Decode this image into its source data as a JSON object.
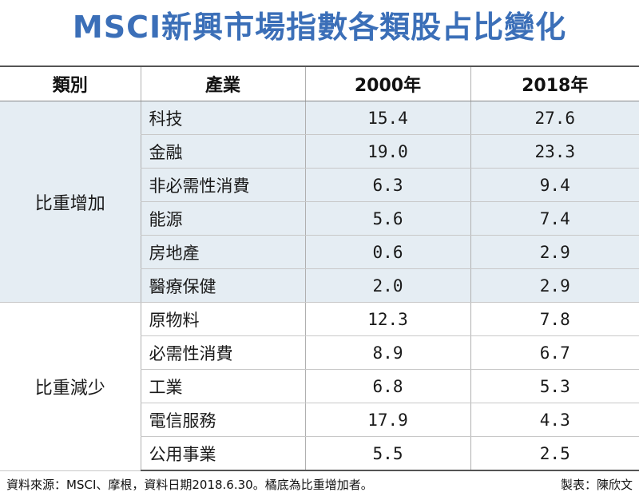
{
  "title": "MSCI新興市場指數各類股占比變化",
  "headers": [
    "類別",
    "產業",
    "2000年",
    "2018年"
  ],
  "groups": [
    {
      "category": "比重增加",
      "rows": [
        {
          "industry": "科技",
          "y2000": "15.4",
          "y2018": "27.6"
        },
        {
          "industry": "金融",
          "y2000": "19.0",
          "y2018": "23.3"
        },
        {
          "industry": "非必需性消費",
          "y2000": "6.3",
          "y2018": "9.4"
        },
        {
          "industry": "能源",
          "y2000": "5.6",
          "y2018": "7.4"
        },
        {
          "industry": "房地產",
          "y2000": "0.6",
          "y2018": "2.9"
        },
        {
          "industry": "醫療保健",
          "y2000": "2.0",
          "y2018": "2.9"
        }
      ]
    },
    {
      "category": "比重減少",
      "rows": [
        {
          "industry": "原物料",
          "y2000": "12.3",
          "y2018": "7.8"
        },
        {
          "industry": "必需性消費",
          "y2000": "8.9",
          "y2018": "6.7"
        },
        {
          "industry": "工業",
          "y2000": "6.8",
          "y2018": "5.3"
        },
        {
          "industry": "電信服務",
          "y2000": "17.9",
          "y2018": "4.3"
        },
        {
          "industry": "公用事業",
          "y2000": "5.5",
          "y2018": "2.5"
        }
      ]
    }
  ],
  "footer": {
    "source": "資料來源：MSCI、摩根，資料日期2018.6.30。橘底為比重增加者。",
    "author": "製表：陳欣文"
  },
  "colors": {
    "title": "#3b6fb8",
    "increase_row_bg": "#e5edf3"
  }
}
